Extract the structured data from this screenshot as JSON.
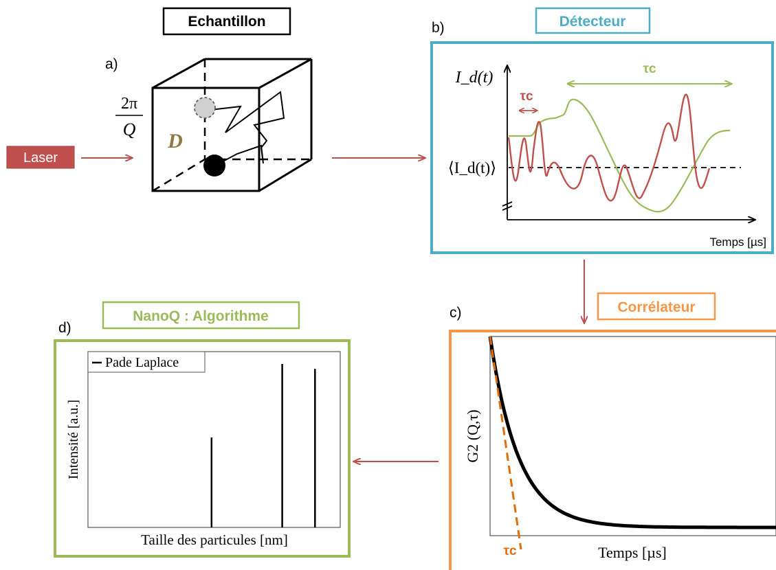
{
  "panels": {
    "a": {
      "letter": "a)",
      "title": "Echantillon",
      "fraction_numerator": "2π",
      "fraction_denominator": "Q",
      "diffusion_symbol": "D"
    },
    "b": {
      "letter": "b)",
      "title": "Détecteur",
      "y_label": "I_d(t)",
      "mean_label": "⟨I_d(t)⟩",
      "tau_short_label": "τc",
      "tau_long_label": "τc",
      "x_label": "Temps [µs]"
    },
    "c": {
      "letter": "c)",
      "title": "Corrélateur",
      "y_label": "G2 (Q,τ)",
      "x_label": "Temps [µs]",
      "tau_label": "τc"
    },
    "d": {
      "letter": "d)",
      "title": "NanoQ : Algorithme",
      "legend": "Pade Laplace",
      "y_label": "Intensité [a.u.]",
      "x_label": "Taille des particules [nm]"
    }
  },
  "laser_label": "Laser",
  "colors": {
    "laser": "#c0504d",
    "arrow": "#c0504d",
    "detector": "#4bacc6",
    "correlator": "#f79646",
    "algorithm": "#9bbb59",
    "signal_red": "#c0504d",
    "signal_green": "#9bbb59",
    "tangent": "#e36c0a"
  },
  "chart_data": [
    {
      "type": "line",
      "series": [
        {
          "name": "",
          "color": "#000000",
          "values_description": ""
        }
      ],
      "curve": {
        "form": "exponential decay",
        "y_start": 1.0,
        "y_end": 0.0,
        "decay_fraction": 0.1
      },
      "xlabel": "Temps [µs]",
      "ylabel": "G2 (Q,τ)"
    },
    {
      "type": "bar",
      "values": [
        0.55,
        1.0,
        0.97
      ],
      "positions": [
        0.49,
        0.77,
        0.9
      ],
      "legend": "Pade Laplace",
      "xlabel": "Taille des particules [nm]",
      "ylabel": "Intensité [a.u.]"
    }
  ]
}
